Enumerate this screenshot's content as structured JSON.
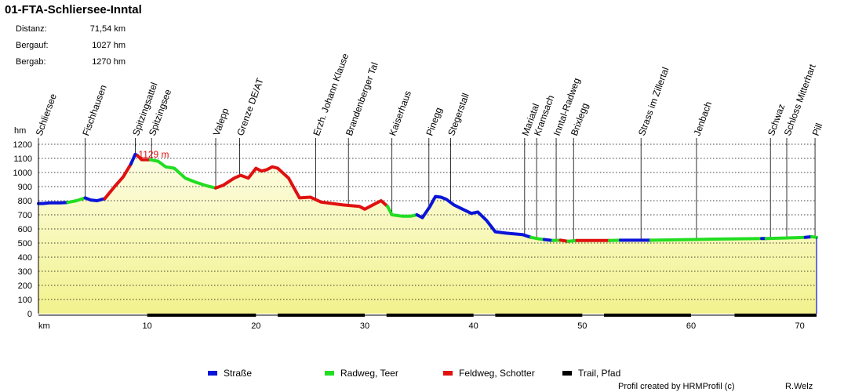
{
  "title": "01-FTA-Schliersee-Inntal",
  "stats": [
    {
      "label": "Distanz:",
      "value": "71,54 km"
    },
    {
      "label": "Bergauf:",
      "value": "1027 hm"
    },
    {
      "label": "Bergab:",
      "value": "1270 hm"
    }
  ],
  "credits": {
    "left": "Profil created by HRMProfil (c)",
    "right": "R.Welz"
  },
  "colors": {
    "strasse": "#0a14d8",
    "radweg": "#22dd22",
    "feldweg": "#e01010",
    "trail": "#000000",
    "fill": "#f2f28e",
    "max_label": "#e01010"
  },
  "chart_data": {
    "type": "area",
    "title": "01-FTA-Schliersee-Inntal",
    "xlabel": "km",
    "ylabel": "hm",
    "xlim": [
      0,
      71.54
    ],
    "ylim": [
      0,
      1200
    ],
    "xticks": [
      10,
      20,
      30,
      40,
      50,
      60,
      70
    ],
    "yticks": [
      0,
      100,
      200,
      300,
      400,
      500,
      600,
      700,
      800,
      900,
      1000,
      1100,
      1200
    ],
    "grid": true,
    "max_label": "1129 m",
    "max_point": [
      8.9,
      1129
    ],
    "series": [
      {
        "name": "Straße",
        "color": "#0a14d8",
        "points": [
          [
            0,
            780
          ],
          [
            0.4,
            780
          ],
          [
            1,
            785
          ],
          [
            2,
            785
          ],
          [
            2.7,
            788
          ]
        ]
      },
      {
        "name": "Radweg, Teer",
        "color": "#22dd22",
        "points": [
          [
            2.7,
            788
          ],
          [
            3.5,
            800
          ],
          [
            4.3,
            820
          ]
        ]
      },
      {
        "name": "Straße",
        "color": "#0a14d8",
        "points": [
          [
            4.3,
            820
          ],
          [
            4.8,
            805
          ],
          [
            5.4,
            800
          ],
          [
            6.1,
            815
          ]
        ]
      },
      {
        "name": "Feldweg, Schotter",
        "color": "#e01010",
        "points": [
          [
            6.1,
            815
          ],
          [
            7,
            900
          ],
          [
            7.8,
            970
          ],
          [
            8.5,
            1060
          ]
        ]
      },
      {
        "name": "Straße",
        "color": "#0a14d8",
        "points": [
          [
            8.5,
            1060
          ],
          [
            8.9,
            1129
          ],
          [
            9.1,
            1120
          ]
        ]
      },
      {
        "name": "Feldweg, Schotter",
        "color": "#e01010",
        "points": [
          [
            9.1,
            1120
          ],
          [
            9.5,
            1090
          ],
          [
            10.3,
            1090
          ]
        ]
      },
      {
        "name": "Radweg, Teer",
        "color": "#22dd22",
        "points": [
          [
            10.3,
            1090
          ],
          [
            11,
            1080
          ],
          [
            11.7,
            1040
          ],
          [
            12.5,
            1030
          ],
          [
            13.5,
            960
          ],
          [
            14.5,
            930
          ],
          [
            15.5,
            905
          ],
          [
            16.3,
            890
          ]
        ]
      },
      {
        "name": "Feldweg, Schotter",
        "color": "#e01010",
        "points": [
          [
            16.3,
            890
          ],
          [
            17,
            910
          ],
          [
            18,
            960
          ],
          [
            18.6,
            980
          ],
          [
            19.3,
            960
          ],
          [
            20,
            1030
          ],
          [
            20.5,
            1010
          ],
          [
            21,
            1020
          ],
          [
            21.5,
            1040
          ],
          [
            22,
            1030
          ],
          [
            23,
            960
          ],
          [
            24,
            820
          ],
          [
            25,
            825
          ],
          [
            26,
            790
          ],
          [
            28,
            770
          ],
          [
            29.5,
            760
          ],
          [
            30,
            740
          ],
          [
            30.5,
            760
          ],
          [
            31.5,
            800
          ],
          [
            32.1,
            760
          ]
        ]
      },
      {
        "name": "Radweg, Teer",
        "color": "#22dd22",
        "points": [
          [
            32.1,
            760
          ],
          [
            32.5,
            700
          ],
          [
            33.5,
            690
          ],
          [
            34.2,
            690
          ],
          [
            34.8,
            700
          ]
        ]
      },
      {
        "name": "Straße",
        "color": "#0a14d8",
        "points": [
          [
            34.8,
            700
          ],
          [
            35.3,
            680
          ],
          [
            36,
            760
          ],
          [
            36.5,
            830
          ],
          [
            37,
            825
          ],
          [
            37.5,
            810
          ],
          [
            38.2,
            770
          ],
          [
            39,
            740
          ],
          [
            39.8,
            710
          ],
          [
            40.4,
            720
          ],
          [
            41.2,
            660
          ],
          [
            42,
            580
          ],
          [
            43,
            570
          ],
          [
            44.5,
            560
          ],
          [
            45.3,
            540
          ]
        ]
      },
      {
        "name": "Radweg, Teer",
        "color": "#22dd22",
        "points": [
          [
            45.3,
            540
          ],
          [
            46,
            530
          ],
          [
            46.5,
            525
          ]
        ]
      },
      {
        "name": "Straße",
        "color": "#0a14d8",
        "points": [
          [
            46.5,
            525
          ],
          [
            47.3,
            518
          ]
        ]
      },
      {
        "name": "Radweg, Teer",
        "color": "#22dd22",
        "points": [
          [
            47.3,
            518
          ],
          [
            48,
            520
          ]
        ]
      },
      {
        "name": "Feldweg, Schotter",
        "color": "#e01010",
        "points": [
          [
            48,
            520
          ],
          [
            48.7,
            512
          ]
        ]
      },
      {
        "name": "Radweg, Teer",
        "color": "#22dd22",
        "points": [
          [
            48.7,
            512
          ],
          [
            49.5,
            518
          ]
        ]
      },
      {
        "name": "Feldweg, Schotter",
        "color": "#e01010",
        "points": [
          [
            49.5,
            518
          ],
          [
            52.5,
            518
          ]
        ]
      },
      {
        "name": "Radweg, Teer",
        "color": "#22dd22",
        "points": [
          [
            52.5,
            518
          ],
          [
            53.5,
            520
          ]
        ]
      },
      {
        "name": "Straße",
        "color": "#0a14d8",
        "points": [
          [
            53.5,
            520
          ],
          [
            56.3,
            520
          ]
        ]
      },
      {
        "name": "Radweg, Teer",
        "color": "#22dd22",
        "points": [
          [
            56.3,
            520
          ],
          [
            62,
            528
          ],
          [
            66.5,
            532
          ]
        ]
      },
      {
        "name": "Straße",
        "color": "#0a14d8",
        "points": [
          [
            66.5,
            532
          ],
          [
            66.9,
            532
          ]
        ]
      },
      {
        "name": "Radweg, Teer",
        "color": "#22dd22",
        "points": [
          [
            66.9,
            532
          ],
          [
            70.5,
            540
          ]
        ]
      },
      {
        "name": "Straße",
        "color": "#0a14d8",
        "points": [
          [
            70.5,
            540
          ],
          [
            71.1,
            545
          ]
        ]
      },
      {
        "name": "Radweg, Teer",
        "color": "#22dd22",
        "points": [
          [
            71.1,
            545
          ],
          [
            71.54,
            540
          ]
        ]
      }
    ],
    "trail_segments": [
      [
        10,
        20
      ],
      [
        22,
        30
      ],
      [
        32,
        40
      ],
      [
        42,
        50
      ],
      [
        52,
        60
      ],
      [
        64,
        71.54
      ]
    ],
    "waypoints": [
      {
        "name": "Schliersee",
        "km": 0
      },
      {
        "name": "Fischhausen",
        "km": 4.3
      },
      {
        "name": "Spitzingsattel",
        "km": 8.9
      },
      {
        "name": "Spitzingsee",
        "km": 10.4
      },
      {
        "name": "Valepp",
        "km": 16.3
      },
      {
        "name": "Grenze DE/AT",
        "km": 18.5
      },
      {
        "name": "Erzh. Johann Klause",
        "km": 25.5
      },
      {
        "name": "Brandenberger Tal",
        "km": 28.5
      },
      {
        "name": "Kaiserhaus",
        "km": 32.5
      },
      {
        "name": "Pinegg",
        "km": 35.9
      },
      {
        "name": "Stegerstall",
        "km": 37.9
      },
      {
        "name": "Mariatal",
        "km": 44.7
      },
      {
        "name": "Kramsach",
        "km": 45.8
      },
      {
        "name": "Inntal-Radweg",
        "km": 47.6
      },
      {
        "name": "Brixlegg",
        "km": 49.2
      },
      {
        "name": "Strass im Zillertal",
        "km": 55.4
      },
      {
        "name": "Jenbach",
        "km": 60.5
      },
      {
        "name": "Schwaz",
        "km": 67.3
      },
      {
        "name": "Schloss Mitterhart",
        "km": 68.8
      },
      {
        "name": "Pill",
        "km": 71.4
      }
    ],
    "legend": [
      {
        "label": "Straße",
        "color": "#0a14d8"
      },
      {
        "label": "Radweg, Teer",
        "color": "#22dd22"
      },
      {
        "label": "Feldweg, Schotter",
        "color": "#e01010"
      },
      {
        "label": "Trail, Pfad",
        "color": "#000000"
      }
    ]
  }
}
